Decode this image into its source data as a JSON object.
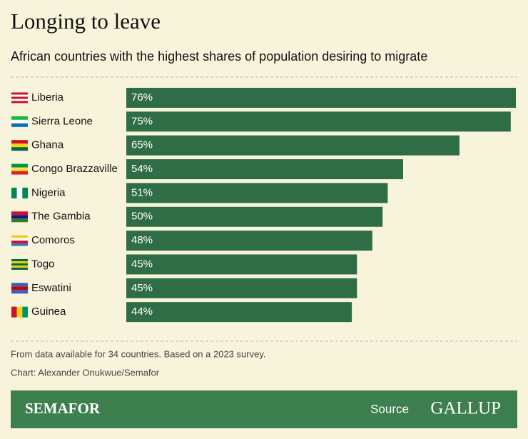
{
  "chart_data": {
    "type": "bar",
    "orientation": "horizontal",
    "title": "Longing to leave",
    "subtitle": "African countries with the highest shares of population desiring to migrate",
    "categories": [
      "Liberia",
      "Sierra Leone",
      "Ghana",
      "Congo Brazzaville",
      "Nigeria",
      "The Gambia",
      "Comoros",
      "Togo",
      "Eswatini",
      "Guinea"
    ],
    "values": [
      76,
      75,
      65,
      54,
      51,
      50,
      48,
      45,
      45,
      44
    ],
    "value_labels": [
      "76%",
      "75%",
      "65%",
      "54%",
      "51%",
      "50%",
      "48%",
      "45%",
      "45%",
      "44%"
    ],
    "color": "#2f6d47",
    "note": "From data available for 34 countries. Based on a 2023 survey.",
    "credit": "Chart: Alexander Onukwue/Semafor",
    "brand": "SEMAFOR",
    "source_label": "Source",
    "source": "GALLUP"
  }
}
